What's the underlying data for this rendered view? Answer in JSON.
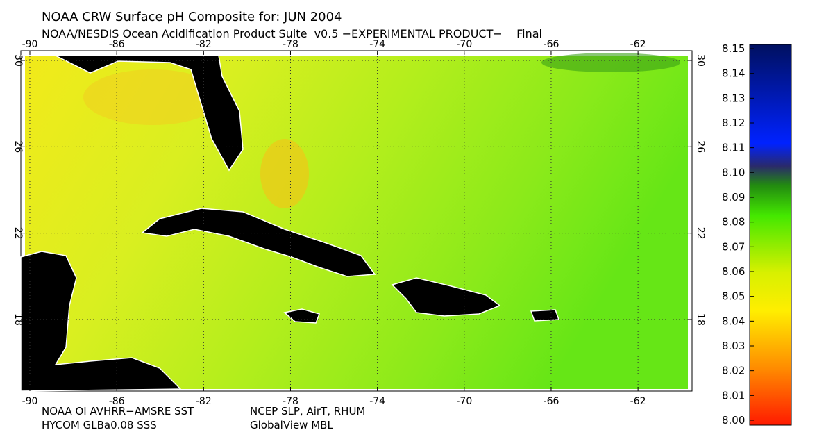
{
  "map": {
    "title": "NOAA CRW Surface pH Composite for: JUN 2004",
    "subtitle": "NOAA/NESDIS Ocean Acidification Product Suite  v0.5 −EXPERIMENTAL PRODUCT−    Final",
    "lon_ticks": [
      -90,
      -86,
      -82,
      -78,
      -74,
      -70,
      -66,
      -62
    ],
    "lat_ticks": [
      30,
      26,
      22,
      18
    ],
    "notes": [
      "NOAA OI AVHRR−AMSRE SST",
      "NCEP SLP, AirT, RHUM",
      "HYCOM GLBa0.08 SSS",
      "GlobalView MBL"
    ],
    "colorbar": {
      "lim": [
        8.0,
        8.15
      ],
      "ticks": [
        {
          "value": 8.15,
          "label": "8.15"
        },
        {
          "value": 8.14,
          "label": "8.14"
        },
        {
          "value": 8.13,
          "label": "8.13"
        },
        {
          "value": 8.12,
          "label": "8.12"
        },
        {
          "value": 8.11,
          "label": "8.11"
        },
        {
          "value": 8.1,
          "label": "8.10"
        },
        {
          "value": 8.09,
          "label": "8.09"
        },
        {
          "value": 8.08,
          "label": "8.08"
        },
        {
          "value": 8.07,
          "label": "8.07"
        },
        {
          "value": 8.06,
          "label": "8.06"
        },
        {
          "value": 8.05,
          "label": "8.05"
        },
        {
          "value": 8.04,
          "label": "8.04"
        },
        {
          "value": 8.03,
          "label": "8.03"
        },
        {
          "value": 8.02,
          "label": "8.02"
        },
        {
          "value": 8.01,
          "label": "8.01"
        },
        {
          "value": 8.0,
          "label": "8.00"
        }
      ]
    }
  }
}
